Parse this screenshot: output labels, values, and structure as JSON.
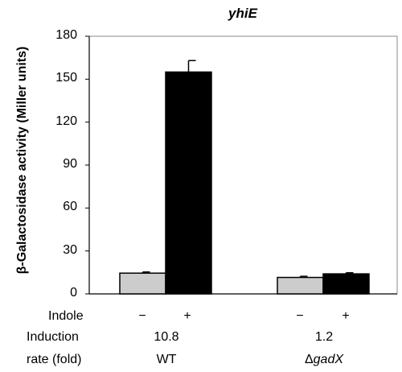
{
  "chart_data": {
    "type": "bar",
    "title": "yhiE",
    "ylabel": "β-Galactosidase activity (Miller units)",
    "ylim": [
      0,
      180
    ],
    "yticks": [
      0,
      30,
      60,
      90,
      120,
      150,
      180
    ],
    "grid": false,
    "groups": [
      {
        "name": "WT",
        "bars": [
          {
            "label": "−",
            "value": 14.5,
            "error": 0.8,
            "color": "#cccccc"
          },
          {
            "label": "+",
            "value": 155,
            "error": 8,
            "color": "#000000"
          }
        ],
        "induction": "10.8"
      },
      {
        "name_prefix": "Δ",
        "name_gene": "gadX",
        "bars": [
          {
            "label": "−",
            "value": 11.5,
            "error": 0.8,
            "color": "#cccccc"
          },
          {
            "label": "+",
            "value": 14,
            "error": 0.8,
            "color": "#000000"
          }
        ],
        "induction": "1.2"
      }
    ]
  },
  "row_labels": {
    "indole": "Indole",
    "induction": "Induction",
    "rate": "rate (fold)"
  }
}
